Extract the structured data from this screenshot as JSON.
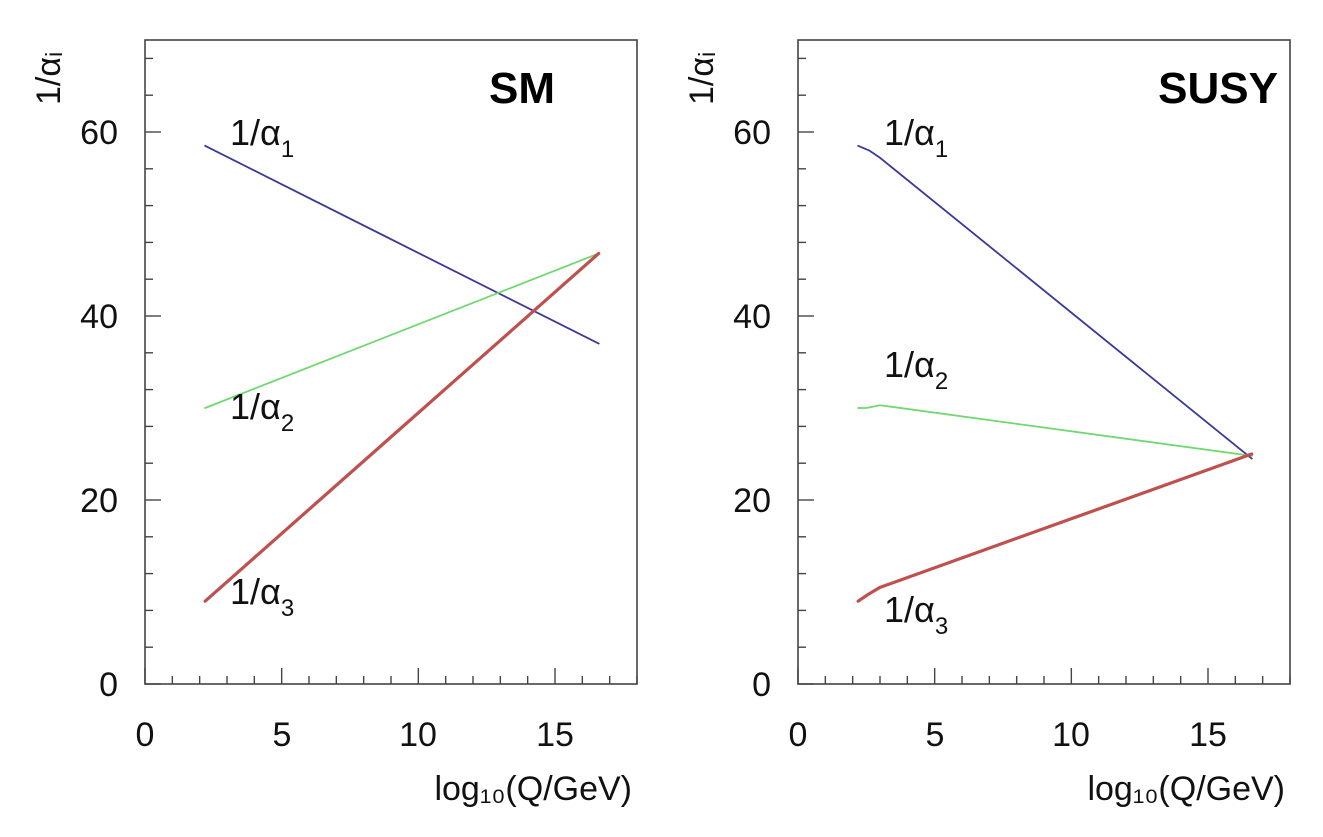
{
  "chart_data": [
    {
      "type": "line",
      "title": "SM",
      "xlabel": "log₁₀(Q/GeV)",
      "ylabel": "1/αᵢ",
      "xlim": [
        0,
        18
      ],
      "ylim": [
        0,
        70
      ],
      "xticks": [
        0,
        5,
        10,
        15
      ],
      "yticks": [
        0,
        20,
        40,
        60
      ],
      "grid": false,
      "series": [
        {
          "name": "1/α₁",
          "label_parts": [
            "1/α",
            "1"
          ],
          "color": "#3a3a9a",
          "x": [
            2.2,
            16.6
          ],
          "y": [
            58.5,
            37.0
          ]
        },
        {
          "name": "1/α₂",
          "label_parts": [
            "1/α",
            "2"
          ],
          "color": "#6fd86f",
          "x": [
            2.2,
            16.6
          ],
          "y": [
            30.0,
            46.8
          ]
        },
        {
          "name": "1/α₃",
          "label_parts": [
            "1/α",
            "3"
          ],
          "color": "#c0504d",
          "x": [
            2.2,
            16.6
          ],
          "y": [
            9.0,
            46.8
          ]
        }
      ]
    },
    {
      "type": "line",
      "title": "SUSY",
      "xlabel": "log₁₀(Q/GeV)",
      "ylabel": "1/αᵢ",
      "xlim": [
        0,
        18
      ],
      "ylim": [
        0,
        70
      ],
      "xticks": [
        0,
        5,
        10,
        15
      ],
      "yticks": [
        0,
        20,
        40,
        60
      ],
      "grid": false,
      "series": [
        {
          "name": "1/α₁",
          "label_parts": [
            "1/α",
            "1"
          ],
          "color": "#3a3a9a",
          "x": [
            2.2,
            2.6,
            3.0,
            16.6
          ],
          "y": [
            58.5,
            58.0,
            57.2,
            24.5
          ]
        },
        {
          "name": "1/α₂",
          "label_parts": [
            "1/α",
            "2"
          ],
          "color": "#6fd86f",
          "x": [
            2.2,
            2.5,
            3.0,
            16.6
          ],
          "y": [
            30.0,
            30.0,
            30.3,
            24.8
          ]
        },
        {
          "name": "1/α₃",
          "label_parts": [
            "1/α",
            "3"
          ],
          "color": "#c0504d",
          "x": [
            2.2,
            2.6,
            3.0,
            16.6
          ],
          "y": [
            9.0,
            9.8,
            10.5,
            25.0
          ]
        }
      ]
    }
  ]
}
